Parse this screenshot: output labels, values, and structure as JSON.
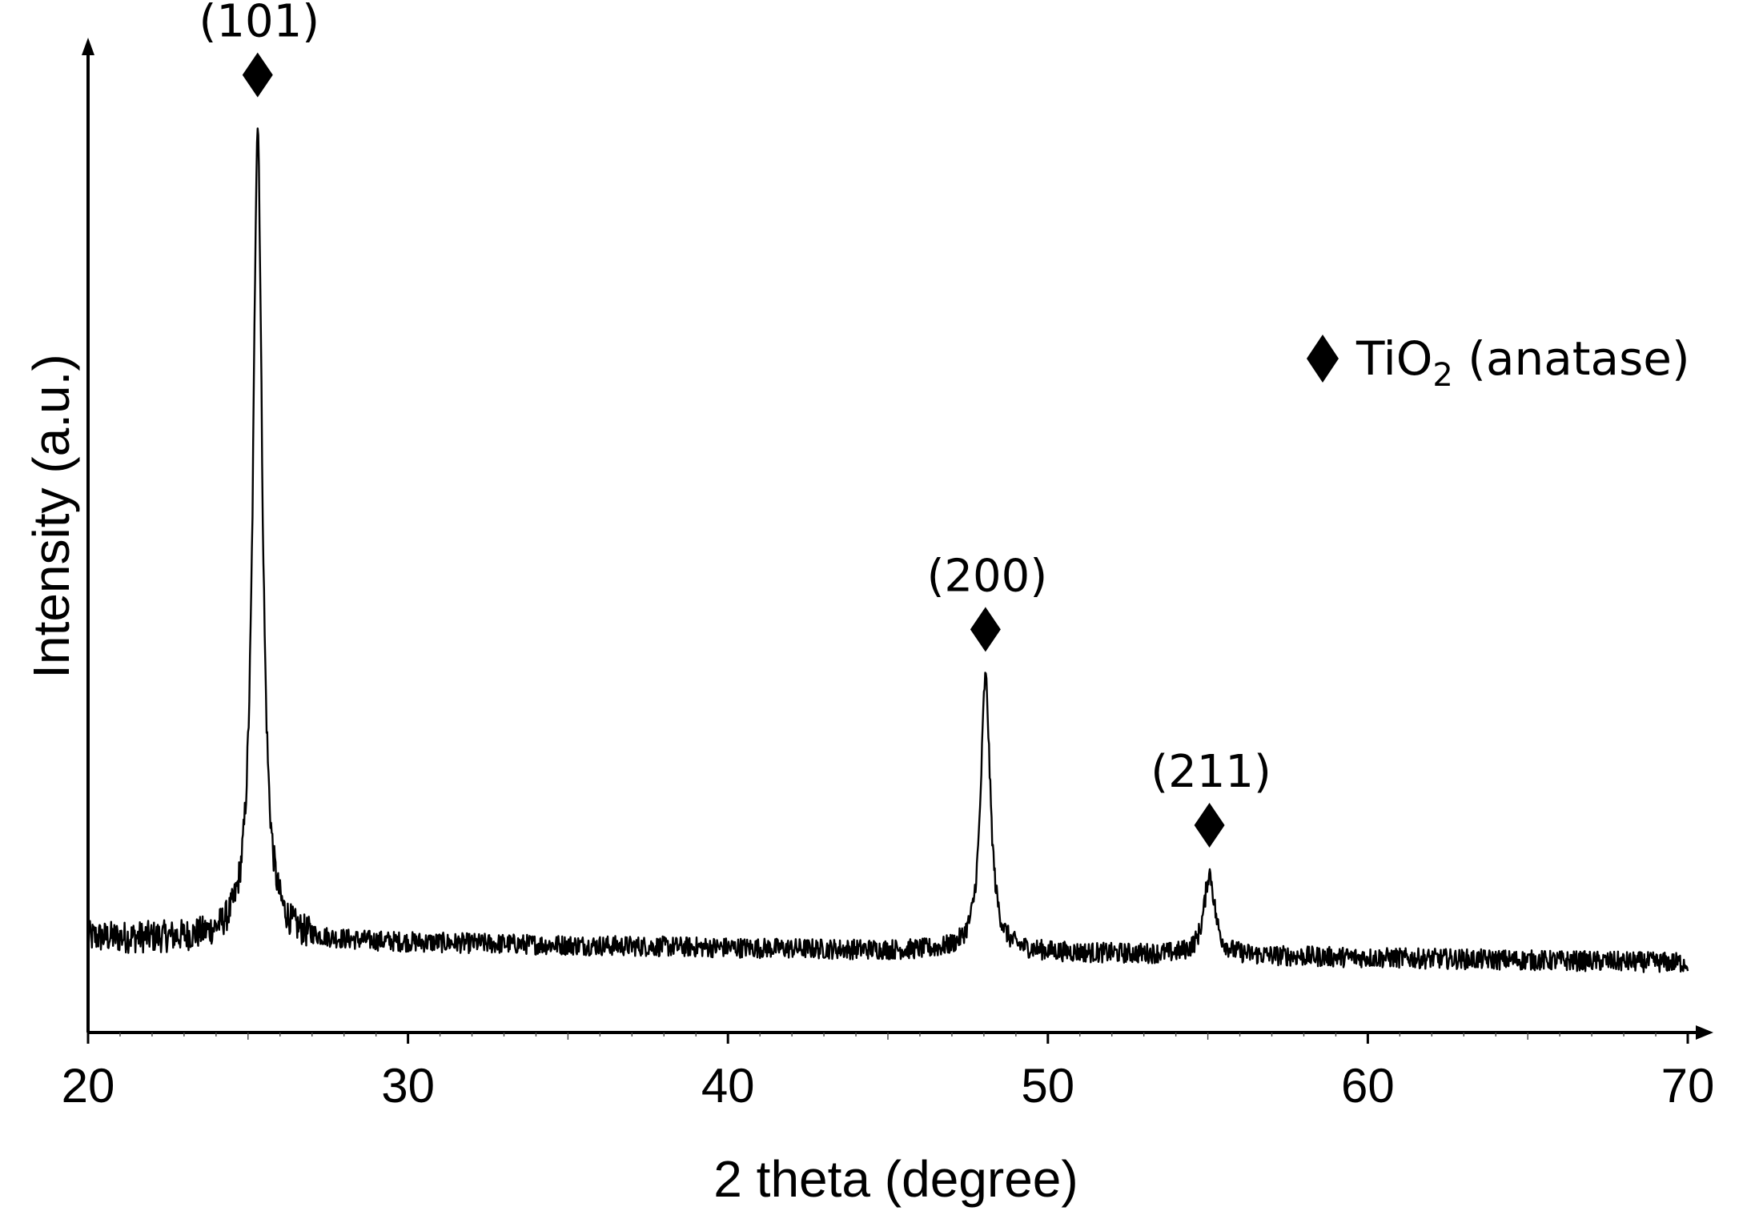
{
  "chart_data": {
    "type": "line",
    "xlabel": "2 theta (degree)",
    "ylabel": "Intensity (a.u.)",
    "xlim": [
      20,
      70
    ],
    "ylim": [
      0,
      100
    ],
    "x_ticks": [
      20,
      30,
      40,
      50,
      60,
      70
    ],
    "y_ticks_shown": false,
    "grid": false,
    "legend": {
      "placement": "top-right",
      "marker": "diamond",
      "text": "TiO",
      "subscript": "2",
      "suffix": " (anatase)"
    },
    "baseline_start": 9.5,
    "baseline_end": 7.0,
    "noise_amplitude": 1.2,
    "peaks": [
      {
        "x": 25.3,
        "height": 82.0,
        "width": 0.17,
        "label": "(101)"
      },
      {
        "x": 48.05,
        "height": 27.5,
        "width": 0.18,
        "label": "(200)"
      },
      {
        "x": 55.05,
        "height": 8.2,
        "width": 0.2,
        "label": "(211)"
      }
    ],
    "series": [
      {
        "color": "#000000"
      }
    ]
  }
}
